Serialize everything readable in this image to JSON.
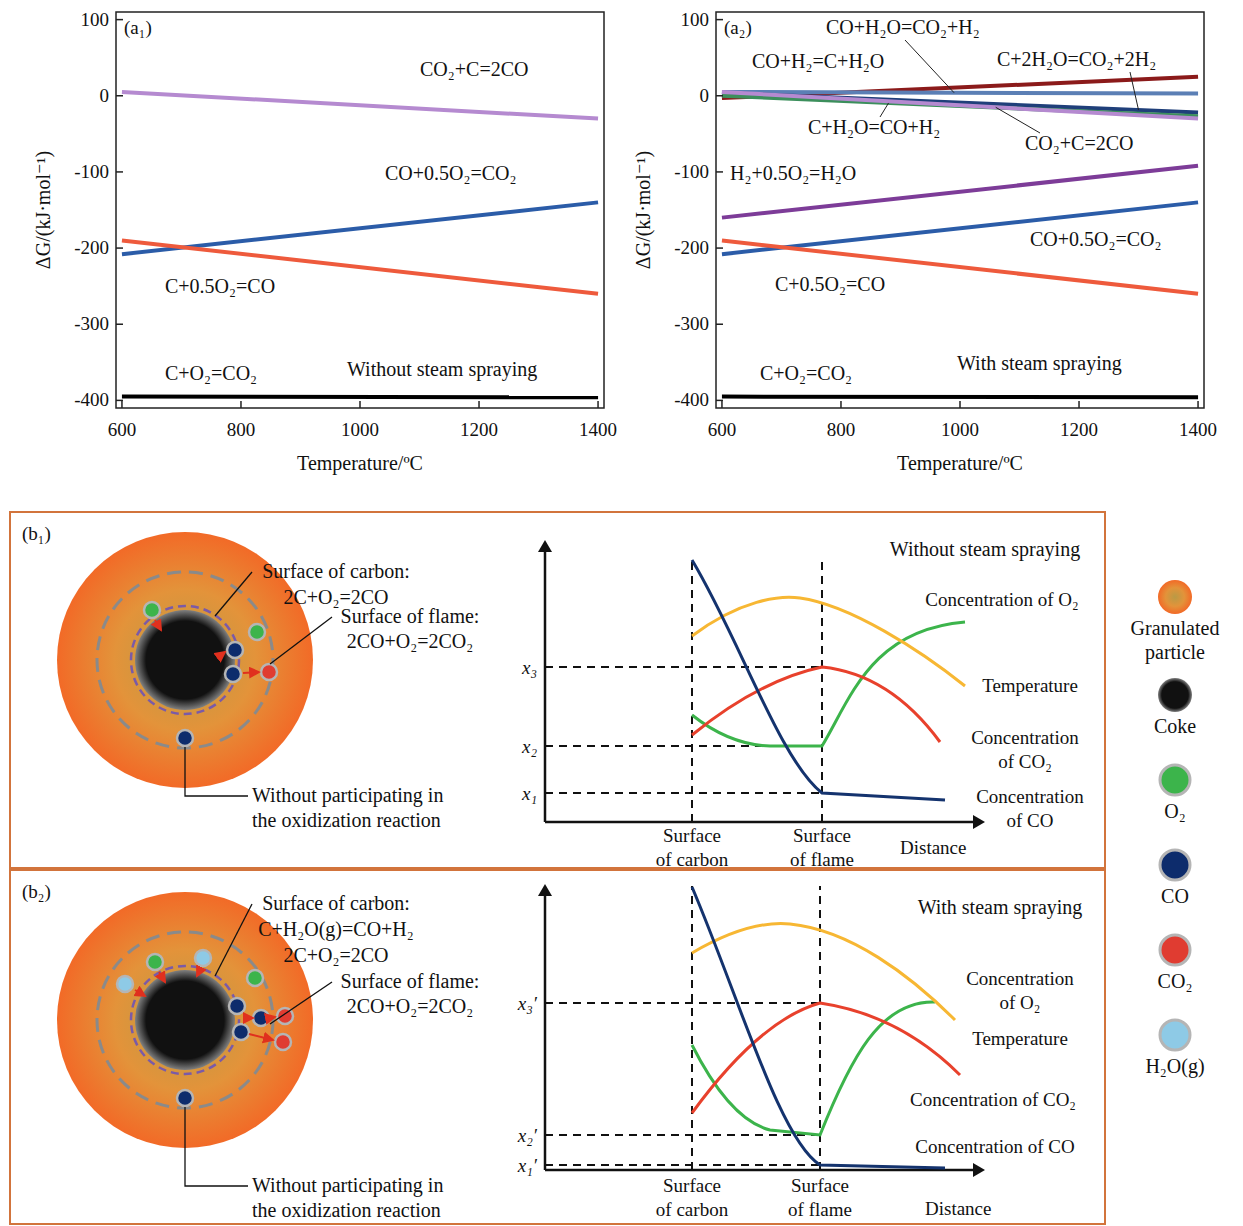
{
  "chart_data": [
    {
      "type": "line",
      "title": "(a₁)",
      "annotations": [
        "Without steam spraying"
      ],
      "x_label": "Temperature/ºC",
      "y_label": "ΔG/(kJ·mol⁻¹)",
      "xlim": [
        590,
        1410
      ],
      "ylim": [
        -410,
        110
      ],
      "xticks": [
        600,
        800,
        1000,
        1200,
        1400
      ],
      "yticks": [
        -400,
        -300,
        -200,
        -100,
        0,
        100
      ],
      "x": [
        600,
        1400
      ],
      "series": [
        {
          "name": "CO₂+C=2CO",
          "color": "#b58ad0",
          "values": [
            5,
            -30
          ]
        },
        {
          "name": "CO+0.5O₂=CO₂",
          "color": "#2b5ca8",
          "values": [
            -208,
            -140
          ]
        },
        {
          "name": "C+0.5O₂=CO",
          "color": "#ee5a3c",
          "values": [
            -190,
            -260
          ]
        },
        {
          "name": "C+O₂=CO₂",
          "color": "#000000",
          "values": [
            -395,
            -396
          ]
        }
      ]
    },
    {
      "type": "line",
      "title": "(a₂)",
      "annotations": [
        "With steam spraying"
      ],
      "x_label": "Temperature/ºC",
      "y_label": "ΔG/(kJ·mol⁻¹)",
      "xlim": [
        590,
        1410
      ],
      "ylim": [
        -410,
        110
      ],
      "xticks": [
        600,
        800,
        1000,
        1200,
        1400
      ],
      "yticks": [
        -400,
        -300,
        -200,
        -100,
        0,
        100
      ],
      "x": [
        600,
        1400
      ],
      "series": [
        {
          "name": "CO+H₂=C+H₂O",
          "color": "#8b1a1a",
          "values": [
            -3,
            25
          ]
        },
        {
          "name": "CO+H₂O=CO₂+H₂",
          "color": "#5b7fb5",
          "values": [
            5,
            3
          ]
        },
        {
          "name": "C+2H₂O=CO₂+2H₂",
          "color": "#1f3f7a",
          "values": [
            4,
            -22
          ]
        },
        {
          "name": "C+H₂O=CO+H₂",
          "color": "#3c8f5c",
          "values": [
            0,
            -27
          ]
        },
        {
          "name": "CO₂+C=2CO",
          "color": "#b58ad0",
          "values": [
            5,
            -30
          ]
        },
        {
          "name": "H₂+0.5O₂=H₂O",
          "color": "#7d3c98",
          "values": [
            -160,
            -92
          ]
        },
        {
          "name": "CO+0.5O₂=CO₂",
          "color": "#2b5ca8",
          "values": [
            -208,
            -140
          ]
        },
        {
          "name": "C+0.5O₂=CO",
          "color": "#ee5a3c",
          "values": [
            -190,
            -260
          ]
        },
        {
          "name": "C+O₂=CO₂",
          "color": "#000000",
          "values": [
            -395,
            -396
          ]
        }
      ]
    }
  ],
  "diagrams": [
    {
      "label": "(b₁)",
      "condition": "Without steam spraying",
      "carbon_surface": {
        "title": "Surface of carbon:",
        "reactions": [
          "2C+O₂=2CO"
        ]
      },
      "flame_surface": {
        "title": "Surface of flame:",
        "reactions": [
          "2CO+O₂=2CO₂"
        ]
      },
      "note": [
        "Without participating in",
        "the oxidization reaction"
      ],
      "levels": [
        "x₃",
        "x₂",
        "x₁"
      ],
      "positions": [
        [
          "Surface",
          "of carbon"
        ],
        [
          "Surface",
          "of flame"
        ]
      ],
      "distance_label": "Distance",
      "curves": [
        {
          "label": [
            "Concentration of O₂"
          ],
          "color": "#3cb44b"
        },
        {
          "label": [
            "Temperature"
          ],
          "color": "#f7b733"
        },
        {
          "label": [
            "Concentration",
            "of CO₂"
          ],
          "color": "#e8412c"
        },
        {
          "label": [
            "Concentration",
            "of CO"
          ],
          "color": "#14336e"
        }
      ]
    },
    {
      "label": "(b₂)",
      "condition": "With steam spraying",
      "carbon_surface": {
        "title": "Surface of carbon:",
        "reactions": [
          "C+H₂O(g)=CO+H₂",
          "2C+O₂=2CO"
        ]
      },
      "flame_surface": {
        "title": "Surface of flame:",
        "reactions": [
          "2CO+O₂=2CO₂"
        ]
      },
      "note": [
        "Without participating in",
        "the oxidization reaction"
      ],
      "levels": [
        "x₃′",
        "x₂′",
        "x₁′"
      ],
      "positions": [
        [
          "Surface",
          "of carbon"
        ],
        [
          "Surface",
          "of flame"
        ]
      ],
      "distance_label": "Distance",
      "curves": [
        {
          "label": [
            "Concentration",
            "of O₂"
          ],
          "color": "#3cb44b"
        },
        {
          "label": [
            "Temperature"
          ],
          "color": "#f7b733"
        },
        {
          "label": [
            "Concentration of CO₂"
          ],
          "color": "#e8412c"
        },
        {
          "label": [
            "Concentration of CO"
          ],
          "color": "#14336e"
        }
      ]
    }
  ],
  "symbols": [
    {
      "label": [
        "Granulated",
        "particle"
      ],
      "color": "#f26a27"
    },
    {
      "label": [
        "Coke"
      ],
      "color": "#111111"
    },
    {
      "label": [
        "O₂"
      ],
      "color": "#3cb44b"
    },
    {
      "label": [
        "CO"
      ],
      "color": "#0d2c6c"
    },
    {
      "label": [
        "CO₂"
      ],
      "color": "#e03c31"
    },
    {
      "label": [
        "H₂O(g)"
      ],
      "color": "#8ecae6"
    }
  ]
}
